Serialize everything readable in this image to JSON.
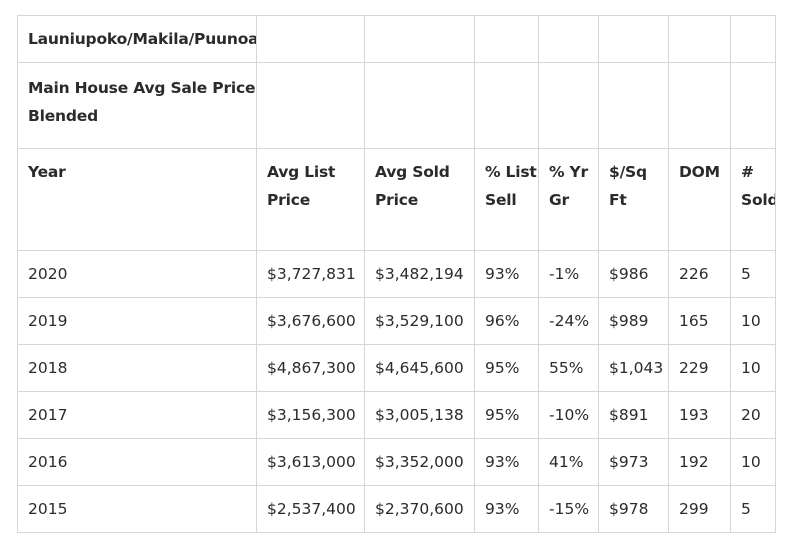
{
  "table": {
    "title": "Launiupoko/Makila/Puunoa",
    "subtitle": "Main House Avg Sale Price Blended",
    "headers": [
      "Year",
      "Avg List Price",
      "Avg Sold Price",
      "% List Sell",
      "% Yr Gr",
      "$/Sq Ft",
      "DOM",
      "# Sold"
    ],
    "rows": [
      [
        "2020",
        "$3,727,831",
        "$3,482,194",
        "93%",
        "-1%",
        "$986",
        "226",
        "5"
      ],
      [
        "2019",
        "$3,676,600",
        "$3,529,100",
        "96%",
        "-24%",
        "$989",
        "165",
        "10"
      ],
      [
        "2018",
        "$4,867,300",
        "$4,645,600",
        "95%",
        "55%",
        "$1,043",
        "229",
        "10"
      ],
      [
        "2017",
        "$3,156,300",
        "$3,005,138",
        "95%",
        "-10%",
        "$891",
        "193",
        "20"
      ],
      [
        "2016",
        "$3,613,000",
        "$3,352,000",
        "93%",
        "41%",
        "$973",
        "192",
        "10"
      ],
      [
        "2015",
        "$2,537,400",
        "$2,370,600",
        "93%",
        "-15%",
        "$978",
        "299",
        "5"
      ]
    ]
  }
}
